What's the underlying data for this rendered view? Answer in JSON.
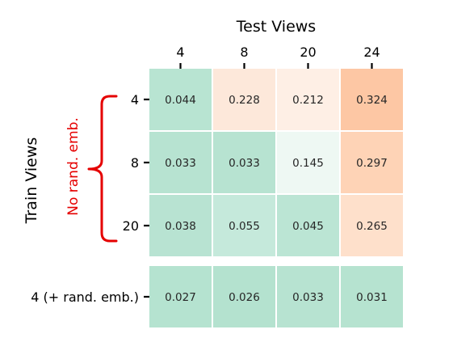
{
  "chart_data": {
    "type": "heatmap",
    "xlabel": "Test Views",
    "ylabel": "Train Views",
    "columns": [
      "4",
      "8",
      "20",
      "24"
    ],
    "rows": [
      "4",
      "8",
      "20",
      "4 (+ rand. emb.)"
    ],
    "values": [
      [
        0.044,
        0.228,
        0.212,
        0.324
      ],
      [
        0.033,
        0.033,
        0.145,
        0.297
      ],
      [
        0.038,
        0.055,
        0.045,
        0.265
      ],
      [
        0.027,
        0.026,
        0.033,
        0.031
      ]
    ],
    "value_labels": [
      [
        "0.044",
        "0.228",
        "0.212",
        "0.324"
      ],
      [
        "0.033",
        "0.033",
        "0.145",
        "0.297"
      ],
      [
        "0.038",
        "0.055",
        "0.045",
        "0.265"
      ],
      [
        "0.027",
        "0.026",
        "0.033",
        "0.031"
      ]
    ],
    "colors": [
      [
        "#b8e4d2",
        "#fde8da",
        "#feefe5",
        "#fdc7a4"
      ],
      [
        "#b7e3d1",
        "#b7e3d1",
        "#eef8f3",
        "#fed3b6"
      ],
      [
        "#b8e3d2",
        "#c5e9db",
        "#bbe5d4",
        "#fee0cb"
      ],
      [
        "#b5e3d0",
        "#b4e2cf",
        "#b7e3d1",
        "#b6e3d0"
      ]
    ],
    "annotation": {
      "text": "No rand. emb.",
      "color": "#e50000",
      "spans_rows": [
        "4",
        "8",
        "20"
      ]
    },
    "row_separator_after": "20"
  }
}
